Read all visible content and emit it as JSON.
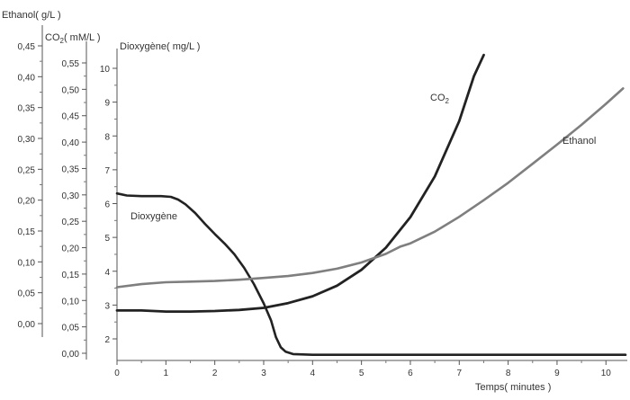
{
  "chart_data": {
    "type": "line",
    "xlabel": "Temps( minutes )",
    "xlim": [
      0,
      10.4
    ],
    "x_ticks": [
      "0",
      "1",
      "2",
      "3",
      "4",
      "5",
      "6",
      "7",
      "8",
      "9",
      "10"
    ],
    "axes": {
      "ethanol": {
        "label": "Ethanol( g/L )",
        "ylim": [
          0,
          0.45
        ],
        "ticks": [
          "0,00",
          "0,05",
          "0,10",
          "0,15",
          "0,20",
          "0,25",
          "0,30",
          "0,35",
          "0,40",
          "0,45"
        ]
      },
      "co2": {
        "label_main": "CO",
        "label_sub": "2",
        "label_rest": "( mM/L )",
        "ylim": [
          0,
          0.55
        ],
        "ticks": [
          "0,00",
          "0,05",
          "0,10",
          "0,15",
          "0,20",
          "0,25",
          "0,30",
          "0,35",
          "0,40",
          "0,45",
          "0,50",
          "0,55"
        ]
      },
      "oxygen": {
        "label": "Dioxygène( mg/L )",
        "ylim": [
          1.5,
          10
        ],
        "ticks": [
          "2",
          "3",
          "4",
          "5",
          "6",
          "7",
          "8",
          "9",
          "10"
        ]
      }
    },
    "series": [
      {
        "name": "Dioxygène",
        "axis": "oxygen",
        "color": "#222222",
        "points": [
          [
            0,
            6.3
          ],
          [
            0.2,
            6.24
          ],
          [
            0.5,
            6.22
          ],
          [
            0.9,
            6.22
          ],
          [
            1.1,
            6.2
          ],
          [
            1.25,
            6.12
          ],
          [
            1.4,
            5.98
          ],
          [
            1.6,
            5.72
          ],
          [
            1.8,
            5.4
          ],
          [
            2.0,
            5.1
          ],
          [
            2.2,
            4.82
          ],
          [
            2.4,
            4.5
          ],
          [
            2.6,
            4.1
          ],
          [
            2.8,
            3.62
          ],
          [
            3.0,
            3.05
          ],
          [
            3.15,
            2.55
          ],
          [
            3.25,
            2.05
          ],
          [
            3.35,
            1.75
          ],
          [
            3.45,
            1.62
          ],
          [
            3.6,
            1.55
          ],
          [
            4.0,
            1.53
          ],
          [
            5.0,
            1.53
          ],
          [
            6.0,
            1.53
          ],
          [
            7.0,
            1.53
          ],
          [
            8.0,
            1.53
          ],
          [
            9.0,
            1.53
          ],
          [
            10.0,
            1.53
          ],
          [
            10.4,
            1.53
          ]
        ]
      },
      {
        "name": "CO",
        "name_sub": "2",
        "axis": "co2",
        "color": "#222222",
        "points": [
          [
            0,
            0.081
          ],
          [
            0.5,
            0.081
          ],
          [
            1.0,
            0.079
          ],
          [
            1.5,
            0.079
          ],
          [
            2.0,
            0.08
          ],
          [
            2.5,
            0.082
          ],
          [
            3.0,
            0.086
          ],
          [
            3.5,
            0.095
          ],
          [
            4.0,
            0.108
          ],
          [
            4.5,
            0.128
          ],
          [
            5.0,
            0.158
          ],
          [
            5.5,
            0.2
          ],
          [
            6.0,
            0.258
          ],
          [
            6.5,
            0.335
          ],
          [
            7.0,
            0.44
          ],
          [
            7.3,
            0.525
          ],
          [
            7.5,
            0.565
          ]
        ]
      },
      {
        "name": "Ethanol",
        "axis": "ethanol",
        "color": "#7f7f7f",
        "points": [
          [
            0,
            0.059
          ],
          [
            0.5,
            0.064
          ],
          [
            1.0,
            0.067
          ],
          [
            1.5,
            0.068
          ],
          [
            2.0,
            0.069
          ],
          [
            2.5,
            0.071
          ],
          [
            3.0,
            0.074
          ],
          [
            3.5,
            0.077
          ],
          [
            4.0,
            0.082
          ],
          [
            4.5,
            0.089
          ],
          [
            5.0,
            0.099
          ],
          [
            5.5,
            0.113
          ],
          [
            5.8,
            0.125
          ],
          [
            6.0,
            0.13
          ],
          [
            6.5,
            0.149
          ],
          [
            7.0,
            0.173
          ],
          [
            7.5,
            0.2
          ],
          [
            8.0,
            0.228
          ],
          [
            8.5,
            0.259
          ],
          [
            9.0,
            0.29
          ],
          [
            9.5,
            0.322
          ],
          [
            10.0,
            0.356
          ],
          [
            10.35,
            0.381
          ]
        ]
      }
    ],
    "grid": false,
    "legend": "none"
  }
}
